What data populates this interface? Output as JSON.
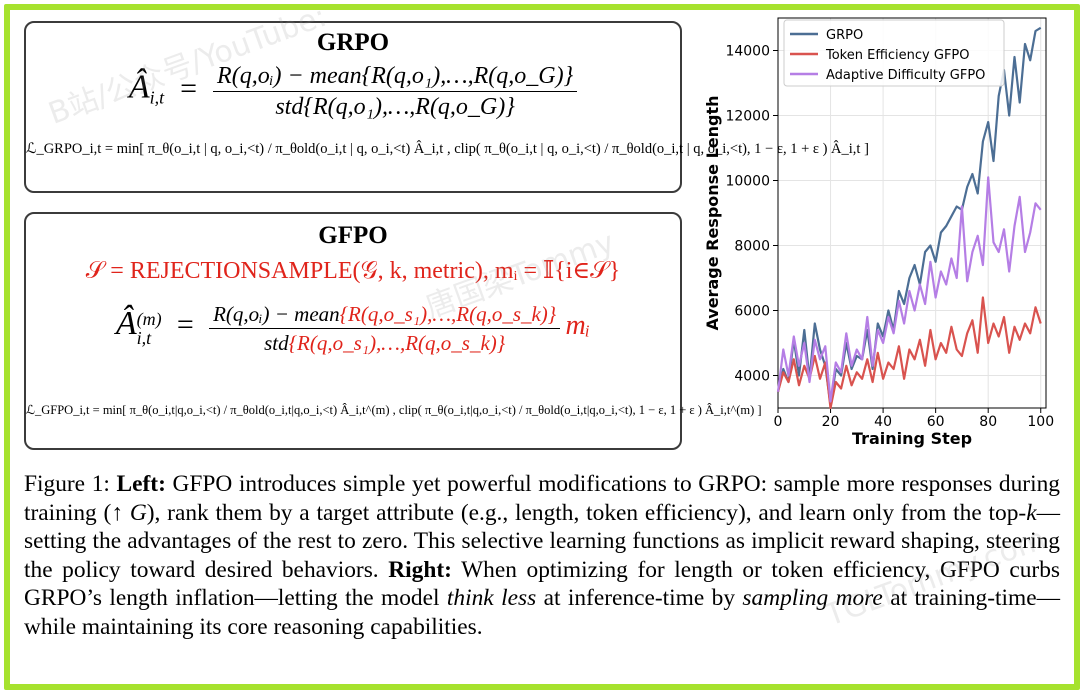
{
  "grpo_box": {
    "title": "GRPO",
    "adv_lhs": "Â",
    "adv_lhs_sub": "i,t",
    "adv_num": "R(q,oᵢ) − mean{R(q,o₁),…,R(q,o_G)}",
    "adv_den": "std{R(q,o₁),…,R(q,o_G)}",
    "loss": "ℒ_GRPO_i,t = min[ π_θ(o_i,t | q, o_i,<t) / π_θold(o_i,t | q, o_i,<t) Â_i,t , clip( π_θ(o_i,t | q, o_i,<t) / π_θold(o_i,t | q, o_i,<t), 1 − ε, 1 + ε ) Â_i,t ]"
  },
  "gfpo_box": {
    "title": "GFPO",
    "select_line": "𝒮 = REJECTIONSAMPLE(𝒢, k, metric),  mᵢ = 𝕀{i∈𝒮}",
    "adv_lhs": "Â",
    "adv_lhs_sub": "i,t",
    "adv_lhs_sup": "(m)",
    "adv_num_black": "R(q,oᵢ) − mean",
    "adv_num_red": "{R(q,o_s₁),…,R(q,o_s_k)}",
    "adv_den_black": "std",
    "adv_den_red": "{R(q,o_s₁),…,R(q,o_s_k)}",
    "adv_mask": "mᵢ",
    "loss": "ℒ_GFPO_i,t = min[ π_θ(o_i,t|q,o_i,<t) / π_θold(o_i,t|q,o_i,<t) Â_i,t^(m) , clip( π_θ(o_i,t|q,o_i,<t) / π_θold(o_i,t|q,o_i,<t), 1 − ε, 1 + ε ) Â_i,t^(m) ]"
  },
  "chart_data": {
    "type": "line",
    "xlabel": "Training Step",
    "ylabel": "Average Response Length",
    "xlim": [
      0,
      102
    ],
    "ylim": [
      3000,
      15000
    ],
    "xticks": [
      0,
      20,
      40,
      60,
      80,
      100
    ],
    "yticks": [
      4000,
      6000,
      8000,
      10000,
      12000,
      14000
    ],
    "grid": true,
    "legend_position": "top-left",
    "series": [
      {
        "name": "GRPO",
        "color": "#4c6e94",
        "x": [
          0,
          2,
          4,
          6,
          8,
          10,
          12,
          14,
          16,
          18,
          20,
          22,
          24,
          26,
          28,
          30,
          32,
          34,
          36,
          38,
          40,
          42,
          44,
          46,
          48,
          50,
          52,
          54,
          56,
          58,
          60,
          62,
          64,
          66,
          68,
          70,
          72,
          74,
          76,
          78,
          80,
          82,
          84,
          86,
          88,
          90,
          92,
          94,
          96,
          98,
          100
        ],
        "y": [
          3500,
          4200,
          3800,
          5100,
          4000,
          5400,
          3900,
          5600,
          4800,
          4300,
          3100,
          4200,
          4000,
          5000,
          4200,
          4600,
          4500,
          5400,
          4200,
          5600,
          5200,
          6000,
          5400,
          6600,
          6200,
          7000,
          7400,
          6800,
          7800,
          8000,
          7500,
          8400,
          8600,
          8900,
          9200,
          9100,
          9800,
          10200,
          9600,
          11200,
          11800,
          10600,
          12600,
          13400,
          12000,
          13800,
          12400,
          14200,
          13700,
          14600,
          14700
        ]
      },
      {
        "name": "Token Efficiency GFPO",
        "color": "#d9534f",
        "x": [
          0,
          2,
          4,
          6,
          8,
          10,
          12,
          14,
          16,
          18,
          20,
          22,
          24,
          26,
          28,
          30,
          32,
          34,
          36,
          38,
          40,
          42,
          44,
          46,
          48,
          50,
          52,
          54,
          56,
          58,
          60,
          62,
          64,
          66,
          68,
          70,
          72,
          74,
          76,
          78,
          80,
          82,
          84,
          86,
          88,
          90,
          92,
          94,
          96,
          98,
          100
        ],
        "y": [
          3500,
          4100,
          3800,
          4500,
          3700,
          4300,
          3900,
          4600,
          3900,
          4400,
          3000,
          3800,
          3600,
          4300,
          3700,
          4100,
          3900,
          4500,
          3800,
          4700,
          3900,
          4400,
          4200,
          4900,
          3900,
          4800,
          4500,
          5100,
          4300,
          5400,
          4500,
          5000,
          4700,
          5500,
          4800,
          4600,
          5300,
          5700,
          4700,
          6400,
          5000,
          5600,
          5200,
          5800,
          4700,
          5500,
          5100,
          5600,
          5300,
          6100,
          5600
        ]
      },
      {
        "name": "Adaptive Difficulty GFPO",
        "color": "#b57ee5",
        "x": [
          0,
          2,
          4,
          6,
          8,
          10,
          12,
          14,
          16,
          18,
          20,
          22,
          24,
          26,
          28,
          30,
          32,
          34,
          36,
          38,
          40,
          42,
          44,
          46,
          48,
          50,
          52,
          54,
          56,
          58,
          60,
          62,
          64,
          66,
          68,
          70,
          72,
          74,
          76,
          78,
          80,
          82,
          84,
          86,
          88,
          90,
          92,
          94,
          96,
          98,
          100
        ],
        "y": [
          3500,
          4800,
          4000,
          5200,
          4300,
          5000,
          3800,
          5100,
          4500,
          4900,
          3200,
          4400,
          4100,
          5300,
          4300,
          4800,
          4500,
          5800,
          4300,
          5400,
          5000,
          5800,
          5300,
          6300,
          5600,
          6600,
          6000,
          6800,
          6200,
          7500,
          6400,
          7200,
          6800,
          7600,
          7000,
          9200,
          6900,
          7800,
          8300,
          7400,
          10100,
          8100,
          7800,
          8500,
          7200,
          8600,
          9500,
          7800,
          8400,
          9300,
          9100
        ]
      }
    ]
  },
  "caption": {
    "label": "Figure 1:",
    "left_bold": "Left:",
    "part1": " GFPO introduces simple yet powerful modifications to GRPO: sample more responses during training (↑ ",
    "g_italic": "G",
    "part2": "), rank them by a target attribute (e.g., length, token efficiency), and learn only from the top-",
    "k_italic": "k",
    "part3": "—setting the advantages of the rest to zero.  This selective learning functions as implicit reward shaping, steering the policy toward desired behaviors.  ",
    "right_bold": "Right:",
    "part4": " When optimizing for length or token efficiency, GFPO curbs GRPO’s length inflation—letting the model ",
    "think_less": "think less",
    "part5": " at inference-time by ",
    "sampling_more": "sampling more",
    "part6": " at training-time—while maintaining its core reasoning capabilities."
  },
  "colors": {
    "border": "#a6e22e",
    "accent_red": "#e0241b"
  },
  "watermark": [
    "B站/公众号/YouTube:",
    "唐国梁Tommy",
    "TGLTommy.com"
  ]
}
